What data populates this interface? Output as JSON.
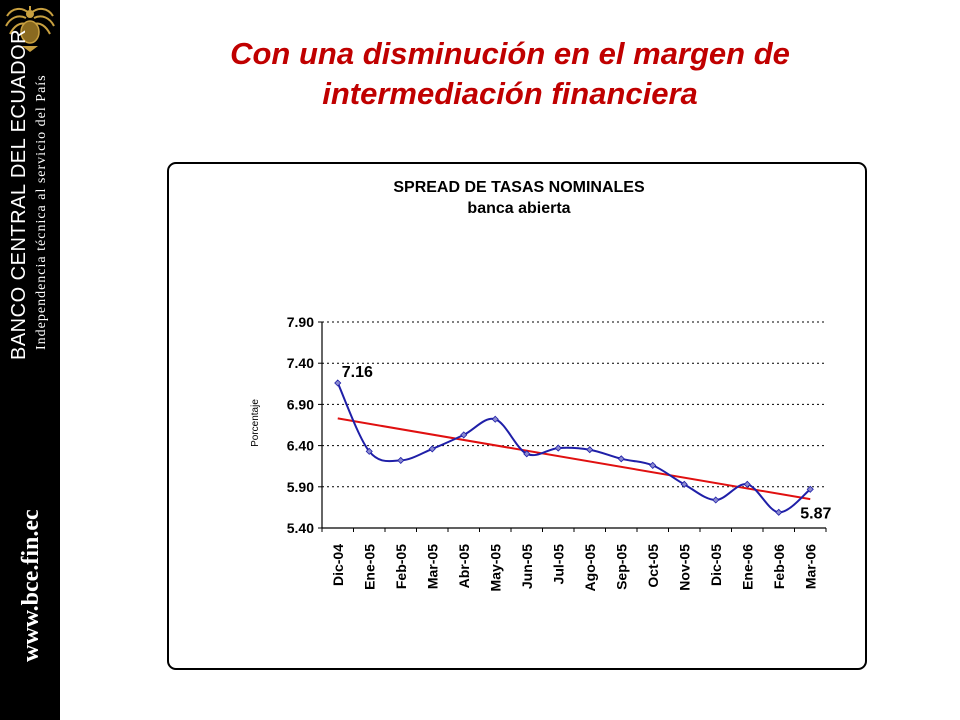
{
  "slide": {
    "title_line1": "Con una disminución en el margen de",
    "title_line2": "intermediación financiera"
  },
  "sidebar": {
    "bank_name": "BANCO CENTRAL DEL ECUADOR",
    "tagline": "Independencia técnica al servicio del País",
    "url": "www.bce.fin.ec",
    "crest_icon": "eagle-crest-icon"
  },
  "colors": {
    "title": "#c00000",
    "series_line": "#1f1fa8",
    "trend_line": "#e01010",
    "sidebar_bg": "#000000"
  },
  "chart_data": {
    "type": "line",
    "title": "SPREAD DE TASAS NOMINALES",
    "subtitle": "banca abierta",
    "xlabel": "",
    "ylabel": "Porcentaje",
    "ylim": [
      5.4,
      7.9
    ],
    "yticks": [
      "7.90",
      "7.40",
      "6.90",
      "6.40",
      "5.90",
      "5.40"
    ],
    "grid": true,
    "categories": [
      "Dic-04",
      "Ene-05",
      "Feb-05",
      "Mar-05",
      "Abr-05",
      "May-05",
      "Jun-05",
      "Jul-05",
      "Ago-05",
      "Sep-05",
      "Oct-05",
      "Nov-05",
      "Dic-05",
      "Ene-06",
      "Feb-06",
      "Mar-06"
    ],
    "series": [
      {
        "values": [
          7.16,
          6.33,
          6.22,
          6.36,
          6.53,
          6.72,
          6.3,
          6.37,
          6.35,
          6.24,
          6.16,
          5.93,
          5.74,
          5.93,
          5.59,
          5.87
        ]
      }
    ],
    "trend": {
      "start": 6.73,
      "end": 5.75
    },
    "annotations": [
      {
        "text": "7.16",
        "index": 0
      },
      {
        "text": "5.87",
        "index": 15
      }
    ]
  }
}
